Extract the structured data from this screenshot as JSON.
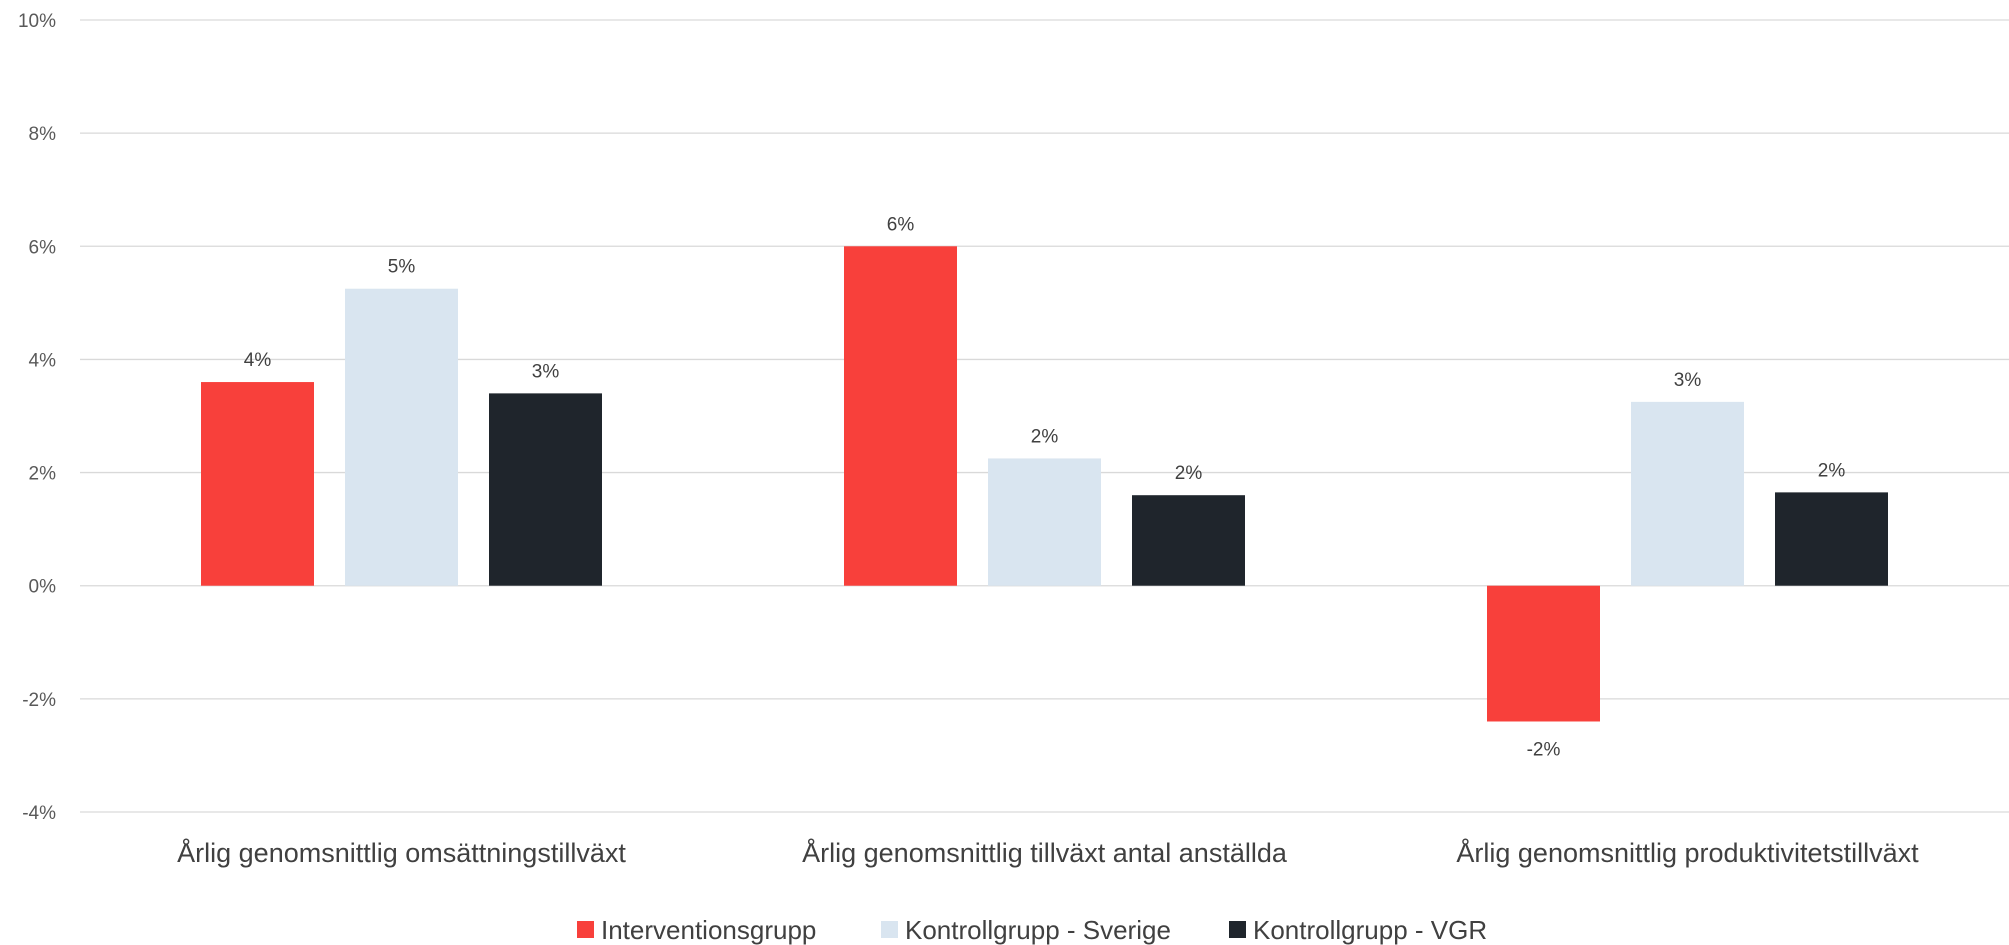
{
  "chart_data": {
    "type": "bar",
    "categories": [
      "Årlig genomsnittlig omsättningstillväxt",
      "Årlig genomsnittlig tillväxt antal anställda",
      "Årlig genomsnittlig produktivitetstillväxt"
    ],
    "series": [
      {
        "name": "Interventionsgrupp",
        "color": "#f8403b",
        "values": [
          3.6,
          6.0,
          -2.4
        ],
        "labels": [
          "4%",
          "6%",
          "-2%"
        ]
      },
      {
        "name": "Kontrollgrupp - Sverige",
        "color": "#d9e5f0",
        "values": [
          5.25,
          2.25,
          3.25
        ],
        "labels": [
          "5%",
          "2%",
          "3%"
        ]
      },
      {
        "name": "Kontrollgrupp - VGR",
        "color": "#1f252c",
        "values": [
          3.4,
          1.6,
          1.65
        ],
        "labels": [
          "3%",
          "2%",
          "2%"
        ]
      }
    ],
    "y_ticks": [
      "-4%",
      "-2%",
      "0%",
      "2%",
      "4%",
      "6%",
      "8%",
      "10%"
    ],
    "y_tick_values": [
      -4,
      -2,
      0,
      2,
      4,
      6,
      8,
      10
    ],
    "ylim": [
      -4,
      10
    ],
    "grid": true,
    "legend_position": "bottom",
    "title": "",
    "xlabel": "",
    "ylabel": ""
  }
}
